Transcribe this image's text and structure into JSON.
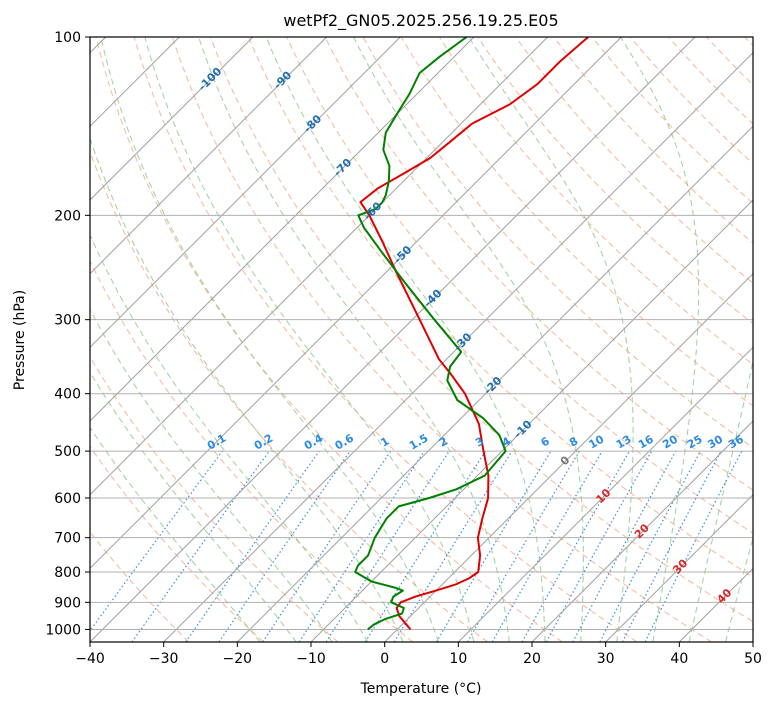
{
  "chart_data": {
    "type": "line",
    "title": "wetPf2_GN05.2025.256.19.25.E05",
    "xlabel": "Temperature (°C)",
    "ylabel": "Pressure (hPa)",
    "xlim": [
      -40,
      50
    ],
    "ylim": [
      1050,
      100
    ],
    "y_scale": "log",
    "x_ticks": [
      -40,
      -30,
      -20,
      -10,
      0,
      10,
      20,
      30,
      40,
      50
    ],
    "y_ticks": [
      100,
      200,
      300,
      400,
      500,
      600,
      700,
      800,
      900,
      1000
    ],
    "grid": true,
    "colors": {
      "temperature": "#e00000",
      "dewpoint": "#008000",
      "skew_isotherm": "#a0a0a0",
      "dry_adiabat": "#f4a582",
      "moist_adiabat": "#90c890",
      "mixing_ratio": "#3a8fe0",
      "isotherm_label": "#1f6fb0",
      "moist_label": "#d62728"
    },
    "isotherm_labels": [
      "-100",
      "-90",
      "-80",
      "-70",
      "-60",
      "-50",
      "-40",
      "-30",
      "-20",
      "-10",
      "0",
      "10",
      "20",
      "30",
      "40"
    ],
    "mixing_ratio_labels": [
      "0.1",
      "0.2",
      "0.4",
      "0.6",
      "1",
      "1.5",
      "2",
      "3",
      "4",
      "6",
      "8",
      "10",
      "13",
      "16",
      "20",
      "25",
      "30",
      "36"
    ],
    "series": [
      {
        "key": "temperature",
        "points": [
          [
            1000,
            1.8
          ],
          [
            980,
            0.5
          ],
          [
            950,
            -1.5
          ],
          [
            920,
            -3.0
          ],
          [
            900,
            -3.2
          ],
          [
            880,
            -2.0
          ],
          [
            860,
            0.0
          ],
          [
            840,
            1.8
          ],
          [
            820,
            2.8
          ],
          [
            800,
            3.2
          ],
          [
            750,
            1.2
          ],
          [
            700,
            -1.5
          ],
          [
            650,
            -3.5
          ],
          [
            600,
            -5.5
          ],
          [
            550,
            -8.5
          ],
          [
            500,
            -12.5
          ],
          [
            450,
            -16.8
          ],
          [
            400,
            -22.8
          ],
          [
            370,
            -27.5
          ],
          [
            350,
            -31.0
          ],
          [
            300,
            -39.0
          ],
          [
            250,
            -48.5
          ],
          [
            220,
            -55.0
          ],
          [
            200,
            -60.0
          ],
          [
            190,
            -63.0
          ],
          [
            180,
            -62.5
          ],
          [
            170,
            -61.0
          ],
          [
            160,
            -59.5
          ],
          [
            150,
            -59.0
          ],
          [
            140,
            -58.5
          ],
          [
            130,
            -56.0
          ],
          [
            120,
            -55.0
          ],
          [
            110,
            -55.0
          ],
          [
            100,
            -54.5
          ]
        ]
      },
      {
        "key": "dewpoint",
        "points": [
          [
            1000,
            -4.0
          ],
          [
            980,
            -3.8
          ],
          [
            960,
            -3.0
          ],
          [
            940,
            -1.5
          ],
          [
            920,
            -2.0
          ],
          [
            900,
            -4.5
          ],
          [
            880,
            -5.0
          ],
          [
            860,
            -4.5
          ],
          [
            850,
            -6.0
          ],
          [
            830,
            -10.0
          ],
          [
            800,
            -13.5
          ],
          [
            780,
            -14.0
          ],
          [
            750,
            -14.0
          ],
          [
            700,
            -15.5
          ],
          [
            650,
            -16.5
          ],
          [
            620,
            -16.5
          ],
          [
            600,
            -13.5
          ],
          [
            580,
            -11.0
          ],
          [
            550,
            -9.0
          ],
          [
            500,
            -9.5
          ],
          [
            470,
            -12.5
          ],
          [
            440,
            -17.0
          ],
          [
            410,
            -23.0
          ],
          [
            380,
            -27.0
          ],
          [
            360,
            -28.5
          ],
          [
            340,
            -29.0
          ],
          [
            300,
            -37.0
          ],
          [
            260,
            -46.0
          ],
          [
            230,
            -53.5
          ],
          [
            210,
            -59.0
          ],
          [
            200,
            -61.5
          ],
          [
            195,
            -60.0
          ],
          [
            190,
            -60.0
          ],
          [
            185,
            -60.5
          ],
          [
            175,
            -62.0
          ],
          [
            165,
            -64.0
          ],
          [
            155,
            -67.0
          ],
          [
            145,
            -69.0
          ],
          [
            135,
            -70.0
          ],
          [
            125,
            -71.0
          ],
          [
            115,
            -72.5
          ],
          [
            108,
            -72.0
          ],
          [
            100,
            -71.0
          ]
        ]
      }
    ]
  }
}
